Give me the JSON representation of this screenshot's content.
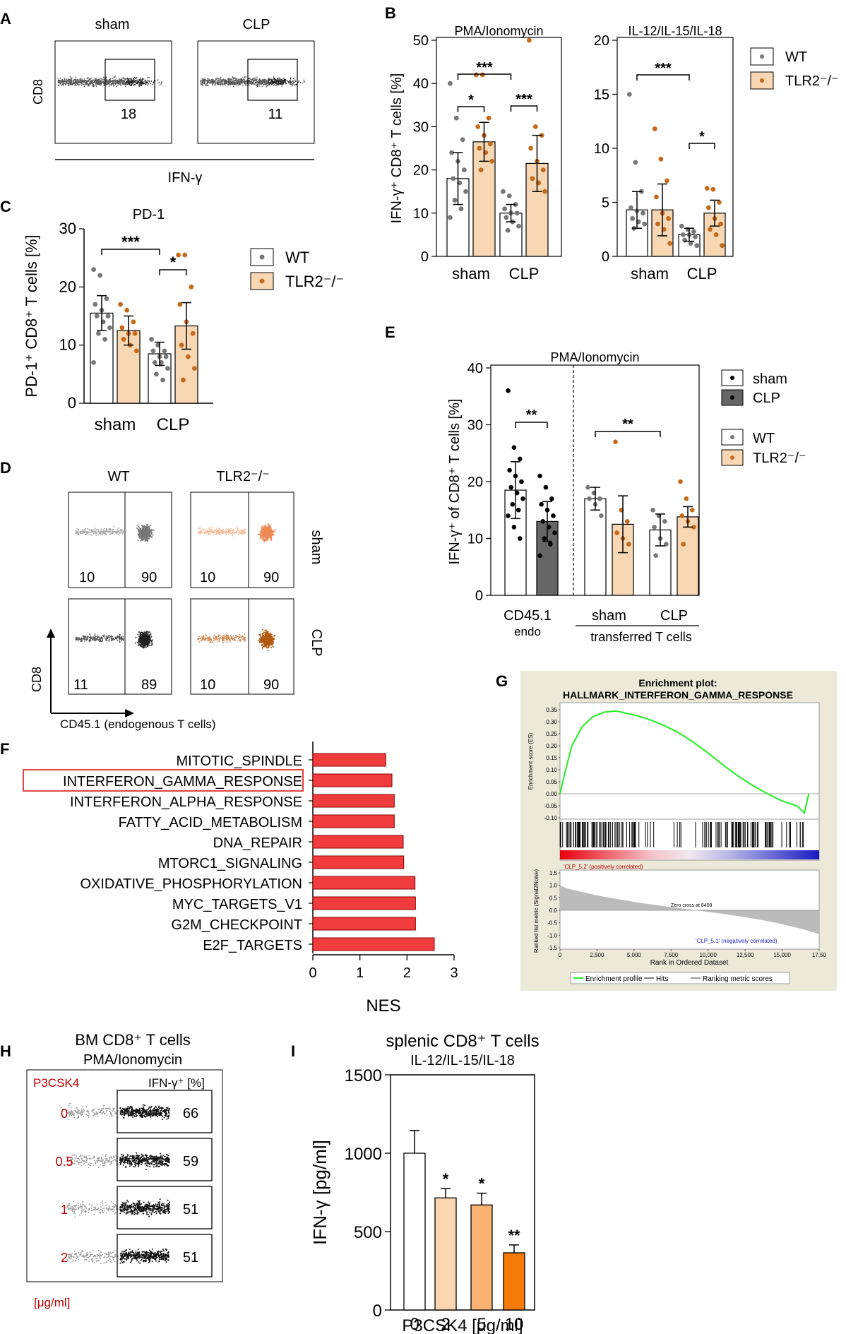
{
  "colors": {
    "wt": "#ffffff",
    "tlr": "#f8d8b4",
    "tlr_dot": "#c66a1a",
    "wt_dot": "#777777",
    "clp_bar": "#666666",
    "nes_bar": "#f03c3c",
    "gsea_line": "#22ee22",
    "gsea_bg": "#ece9d8",
    "p3_0": "#ffffff",
    "p3_2": "#fbd6b0",
    "p3_5": "#f9b272",
    "p3_10": "#f57a0a",
    "red_label": "#c00000"
  },
  "panels": {
    "A": "A",
    "B": "B",
    "C": "C",
    "D": "D",
    "E": "E",
    "F": "F",
    "G": "G",
    "H": "H",
    "I": "I"
  },
  "panel_a": {
    "plots": [
      {
        "title": "sham",
        "value": "18"
      },
      {
        "title": "CLP",
        "value": "11"
      }
    ],
    "ylabel": "CD8",
    "xlabel": "IFN-γ"
  },
  "panel_b_common": {
    "ylabel": "IFN-γ⁺ CD8⁺ T cells [%]"
  },
  "panel_d": {
    "col_titles": [
      "WT",
      "TLR2⁻/⁻"
    ],
    "row_titles": [
      "sham",
      "CLP"
    ],
    "plots": [
      {
        "left": "10",
        "right": "90"
      },
      {
        "left": "10",
        "right": "90"
      },
      {
        "left": "11",
        "right": "89"
      },
      {
        "left": "10",
        "right": "90"
      }
    ],
    "ylabel": "CD8",
    "xlabel": "CD45.1 (endogenous T cells)"
  },
  "panel_e_extra": {
    "xgroup1": "CD45.1",
    "xgroup1_sub": "endo",
    "xgroup2": "transferred T cells"
  },
  "panel_g": {
    "title1": "Enrichment plot:",
    "title2": "HALLMARK_INTERFERON_GAMMA_RESPONSE",
    "es_label": "Enrichment score (ES)",
    "rank_label": "Ranked list metric (Signal2Noise)",
    "xlabel": "Rank in Ordered Dataset",
    "pos_label": "'CLP_5.2' (positively correlated)",
    "neg_label": "'CLP_5.1' (negatively correlated)",
    "zero_cross": "Zero cross at 8408",
    "es_ticks": [
      "0.35",
      "0.30",
      "0.25",
      "0.20",
      "0.15",
      "0.10",
      "0.05",
      "0.00",
      "-0.05",
      "-0.10"
    ],
    "rank_ticks": [
      "1.5",
      "1.0",
      "0.5",
      "0.0",
      "-0.5",
      "-1.0",
      "-1.5"
    ],
    "x_ticks": [
      "0",
      "2,500",
      "5,000",
      "7,500",
      "10,000",
      "12,500",
      "15,000",
      "17,50"
    ],
    "legend": [
      "Enrichment profile",
      "Hits",
      "Ranking metric scores"
    ]
  },
  "panel_h": {
    "title1": "BM CD8⁺ T cells",
    "title2": "PMA/Ionomycin",
    "col_left": "P3CSK4",
    "col_right": "IFN-γ⁺ [%]",
    "rows": [
      {
        "dose": "0",
        "value": "66"
      },
      {
        "dose": "0.5",
        "value": "59"
      },
      {
        "dose": "1",
        "value": "51"
      },
      {
        "dose": "2",
        "value": "51"
      }
    ],
    "unit": "[μg/ml]"
  },
  "chart_data": [
    {
      "id": "B1",
      "type": "bar",
      "title": "PMA/Ionomycin",
      "categories": [
        "sham",
        "CLP"
      ],
      "ylim": [
        0,
        50
      ],
      "yticks": [
        0,
        10,
        20,
        30,
        40,
        50
      ],
      "series": [
        {
          "name": "WT",
          "values": [
            18,
            10
          ],
          "errors": [
            6,
            2
          ]
        },
        {
          "name": "TLR2⁻/⁻",
          "values": [
            26.5,
            21.5
          ],
          "errors": [
            4.5,
            6.5
          ]
        }
      ],
      "points": [
        [
          40,
          32,
          27,
          24,
          22,
          20,
          18,
          17,
          15,
          13,
          11,
          9
        ],
        [
          42,
          42,
          32,
          30,
          28,
          26,
          25,
          24,
          22,
          20
        ],
        [
          15,
          14,
          12,
          11,
          10,
          10,
          9,
          8,
          7,
          6
        ],
        [
          50,
          30,
          28,
          25,
          22,
          20,
          18,
          17,
          15
        ]
      ],
      "brackets": [
        {
          "label": "***",
          "from": [
            0,
            0
          ],
          "to": [
            1,
            0
          ]
        },
        {
          "label": "*",
          "from": [
            0,
            0
          ],
          "to": [
            0,
            1
          ]
        },
        {
          "label": "***",
          "from": [
            1,
            0
          ],
          "to": [
            1,
            1
          ]
        }
      ]
    },
    {
      "id": "B2",
      "type": "bar",
      "title": "IL-12/IL-15/IL-18",
      "categories": [
        "sham",
        "CLP"
      ],
      "ylim": [
        0,
        20
      ],
      "yticks": [
        0,
        5,
        10,
        15,
        20
      ],
      "series": [
        {
          "name": "WT",
          "values": [
            4.3,
            2
          ],
          "errors": [
            1.7,
            0.6
          ]
        },
        {
          "name": "TLR2⁻/⁻",
          "values": [
            4.3,
            4
          ],
          "errors": [
            2.4,
            1.2
          ]
        }
      ],
      "points": [
        [
          15,
          8.7,
          6,
          4.5,
          4.2,
          4,
          3.5,
          3.2,
          3,
          2.6
        ],
        [
          11.8,
          9,
          7,
          5.5,
          4,
          3.5,
          3,
          2.5,
          1.2
        ],
        [
          2.8,
          2.5,
          2.3,
          2,
          2,
          1.8,
          1.5,
          1.2,
          1
        ],
        [
          6.3,
          6.2,
          5,
          4.5,
          3.5,
          3,
          2.5,
          2,
          1
        ]
      ],
      "brackets": [
        {
          "label": "***",
          "from": [
            0,
            0
          ],
          "to": [
            1,
            0
          ]
        },
        {
          "label": "*",
          "from": [
            1,
            0
          ],
          "to": [
            1,
            1
          ]
        }
      ]
    },
    {
      "id": "C",
      "type": "bar",
      "title": "PD-1",
      "ylabel": "PD-1⁺ CD8⁺ T cells [%]",
      "categories": [
        "sham",
        "CLP"
      ],
      "ylim": [
        0,
        30
      ],
      "yticks": [
        0,
        10,
        20,
        30
      ],
      "series": [
        {
          "name": "WT",
          "values": [
            15.5,
            8.5
          ],
          "errors": [
            3,
            2
          ]
        },
        {
          "name": "TLR2⁻/⁻",
          "values": [
            12.5,
            13.3
          ],
          "errors": [
            2.5,
            4
          ]
        }
      ],
      "points": [
        [
          23,
          22,
          18,
          17,
          16,
          15,
          15,
          14,
          13,
          12,
          11,
          7
        ],
        [
          17,
          16,
          14,
          13,
          12,
          12,
          11,
          10,
          9
        ],
        [
          11,
          10,
          9,
          9,
          8,
          8,
          7,
          7,
          6,
          5,
          4
        ],
        [
          25.5,
          25.5,
          20,
          17,
          14,
          12,
          10,
          8,
          6,
          4
        ]
      ],
      "brackets": [
        {
          "label": "***",
          "from": [
            0,
            0
          ],
          "to": [
            1,
            0
          ]
        },
        {
          "label": "*",
          "from": [
            1,
            0
          ],
          "to": [
            1,
            1
          ]
        }
      ]
    },
    {
      "id": "E",
      "type": "bar",
      "title": "PMA/Ionomycin",
      "ylabel": "IFN-γ⁺ of CD8⁺ T cells [%]",
      "categories": [
        "CD45.1 sham",
        "CD45.1 CLP",
        "sham WT",
        "sham TLR2⁻/⁻",
        "CLP WT",
        "CLP TLR2⁻/⁻"
      ],
      "xlabels": [
        "sham",
        "CLP"
      ],
      "ylim": [
        0,
        40
      ],
      "yticks": [
        0,
        10,
        20,
        30,
        40
      ],
      "values": [
        18.5,
        13,
        17,
        12.5,
        11.5,
        13.8
      ],
      "errors": [
        5,
        3.5,
        2,
        5,
        2.8,
        1.8
      ],
      "points": [
        [
          36,
          26,
          24,
          22,
          21,
          20,
          19,
          18,
          17,
          16,
          15,
          14,
          12,
          10
        ],
        [
          21,
          19,
          17,
          16,
          15,
          14,
          13,
          12,
          11,
          10,
          9,
          7
        ],
        [
          19,
          18,
          17,
          17,
          16,
          14
        ],
        [
          27,
          15,
          13,
          11,
          10,
          9
        ],
        [
          15,
          14,
          13,
          12,
          10,
          9,
          7
        ],
        [
          20,
          17,
          15,
          14,
          13,
          12,
          9
        ]
      ],
      "brackets": [
        {
          "label": "**",
          "from": 0,
          "to": 1
        },
        {
          "label": "**",
          "from": 2,
          "to": 4
        }
      ],
      "legend": [
        "sham",
        "CLP",
        "WT",
        "TLR2⁻/⁻"
      ]
    },
    {
      "id": "F",
      "type": "bar",
      "orientation": "horizontal",
      "xlabel": "NES",
      "xlim": [
        0,
        3
      ],
      "xticks": [
        0,
        1,
        2,
        3
      ],
      "categories": [
        "MITOTIC_SPINDLE",
        "INTERFERON_GAMMA_RESPONSE",
        "INTERFERON_ALPHA_RESPONSE",
        "FATTY_ACID_METABOLISM",
        "DNA_REPAIR",
        "MTORC1_SIGNALING",
        "OXIDATIVE_PHOSPHORYLATION",
        "MYC_TARGETS_V1",
        "G2M_CHECKPOINT",
        "E2F_TARGETS"
      ],
      "values": [
        1.55,
        1.68,
        1.73,
        1.73,
        1.92,
        1.93,
        2.17,
        2.18,
        2.18,
        2.58
      ],
      "highlight": "INTERFERON_GAMMA_RESPONSE"
    },
    {
      "id": "G",
      "type": "line",
      "title": "HALLMARK_INTERFERON_GAMMA_RESPONSE",
      "xlim": [
        0,
        17500
      ],
      "ylim": [
        -0.1,
        0.37
      ],
      "x": [
        0,
        300,
        800,
        1500,
        2200,
        3000,
        3800,
        4500,
        5200,
        6000,
        7000,
        8000,
        9000,
        10000,
        11000,
        12000,
        13000,
        14000,
        15000,
        16000,
        16500,
        16800
      ],
      "y": [
        0,
        0.08,
        0.2,
        0.28,
        0.32,
        0.34,
        0.345,
        0.335,
        0.325,
        0.31,
        0.285,
        0.255,
        0.215,
        0.17,
        0.12,
        0.075,
        0.035,
        0.0,
        -0.03,
        -0.05,
        -0.08,
        0.0
      ]
    },
    {
      "id": "I",
      "type": "bar",
      "title": "splenic CD8⁺ T cells",
      "subtitle": "IL-12/IL-15/IL-18",
      "ylabel": "IFN-γ [pg/ml]",
      "xlabel": "P3CSK4 [μg/ml]",
      "categories": [
        "0",
        "2",
        "5",
        "10"
      ],
      "values": [
        1000,
        715,
        670,
        365
      ],
      "errors": [
        145,
        60,
        75,
        50
      ],
      "labels": [
        "",
        "*",
        "*",
        "**"
      ],
      "ylim": [
        0,
        1500
      ],
      "yticks": [
        0,
        500,
        1000,
        1500
      ]
    }
  ],
  "legend_bc": {
    "wt": "WT",
    "tlr": "TLR2⁻/⁻"
  },
  "legend_e": {
    "sham": "sham",
    "clp": "CLP",
    "wt": "WT",
    "tlr": "TLR2⁻/⁻"
  }
}
